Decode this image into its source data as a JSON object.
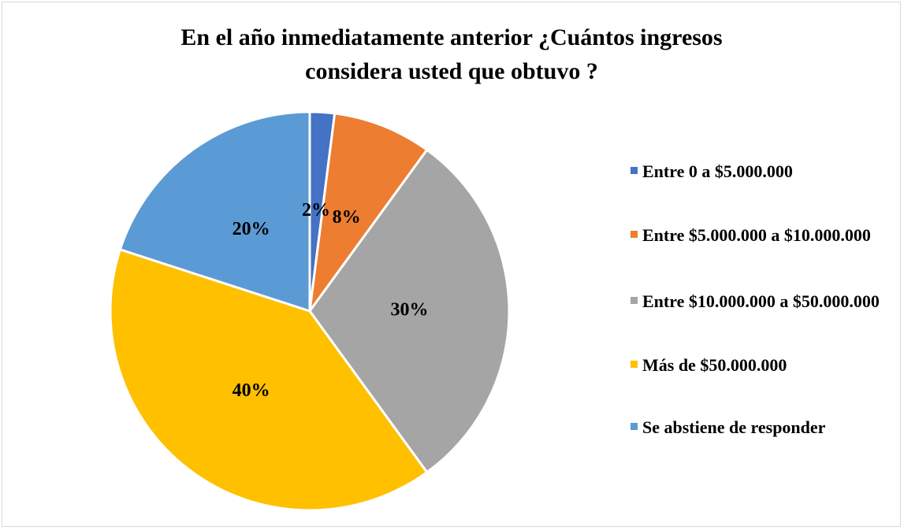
{
  "chart_data": {
    "type": "pie",
    "title": "En el año inmediatamente anterior ¿Cuántos ingresos considera usted que obtuvo ?",
    "categories": [
      "Entre 0 a $5.000.000",
      "Entre $5.000.000 a $10.000.000",
      "Entre $10.000.000 a $50.000.000",
      "Más de $50.000.000",
      "Se abstiene de responder"
    ],
    "values": [
      2,
      8,
      30,
      40,
      20
    ],
    "value_labels": [
      "2%",
      "8%",
      "30%",
      "40%",
      "20%"
    ],
    "colors": [
      "#4472c4",
      "#ed7d31",
      "#a5a5a5",
      "#ffc000",
      "#5b9bd5"
    ],
    "legend": "right"
  }
}
